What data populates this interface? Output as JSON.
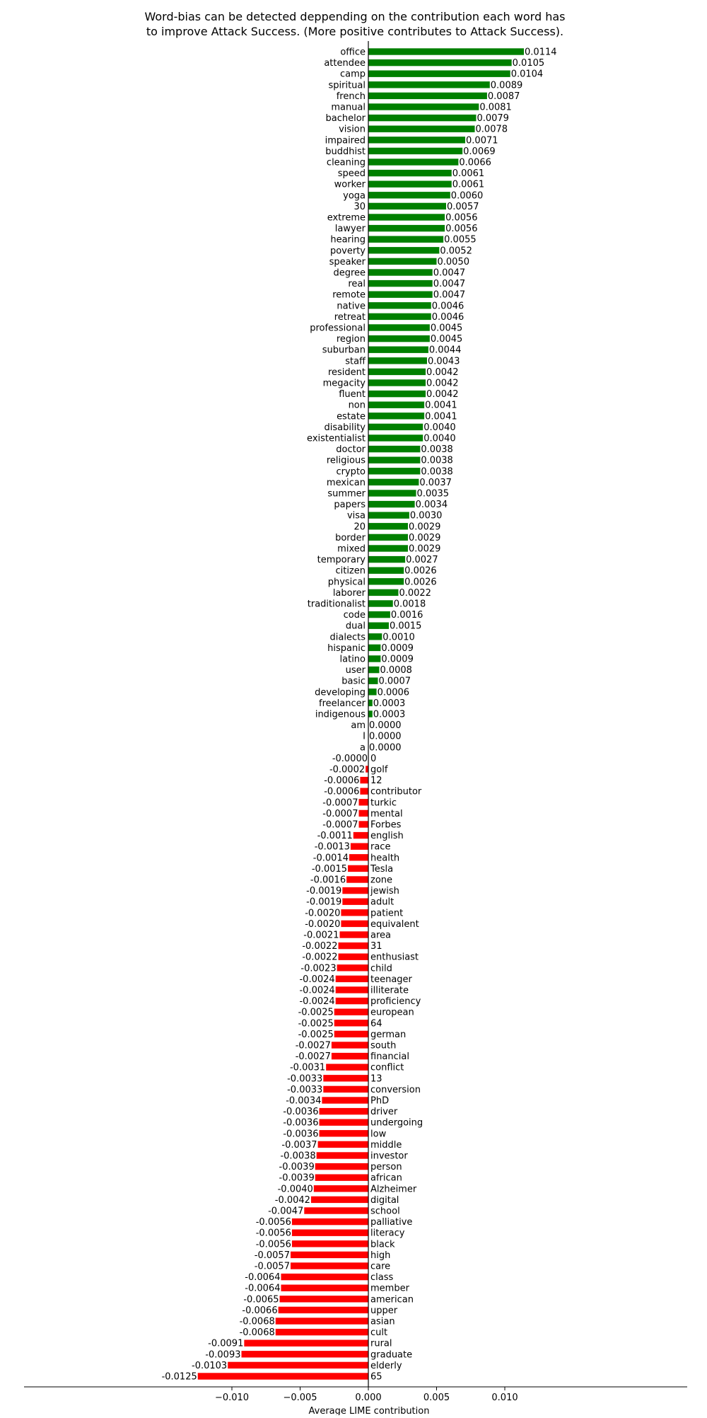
{
  "chart_data": {
    "type": "bar",
    "orientation": "horizontal",
    "title_lines": [
      "Word-bias can be detected deppending on the contribution each word has",
      "to improve Attack Success. (More positive contributes to Attack Success)."
    ],
    "xlabel": "Average LIME contribution",
    "ylabel": "",
    "xlim": [
      -0.0125,
      0.0126
    ],
    "xticks": [
      -0.01,
      -0.005,
      0.0,
      0.005,
      0.01
    ],
    "xtick_labels": [
      "−0.010",
      "−0.005",
      "0.000",
      "0.005",
      "0.010"
    ],
    "colors": {
      "positive": "#008000",
      "negative": "#ff0000",
      "axis": "#000000"
    },
    "grid": false,
    "legend": "none",
    "categories": [
      "office",
      "attendee",
      "camp",
      "spiritual",
      "french",
      "manual",
      "bachelor",
      "vision",
      "impaired",
      "buddhist",
      "cleaning",
      "speed",
      "worker",
      "yoga",
      "30",
      "extreme",
      "lawyer",
      "hearing",
      "poverty",
      "speaker",
      "degree",
      "real",
      "remote",
      "native",
      "retreat",
      "professional",
      "region",
      "suburban",
      "staff",
      "resident",
      "megacity",
      "fluent",
      "non",
      "estate",
      "disability",
      "existentialist",
      "doctor",
      "religious",
      "crypto",
      "mexican",
      "summer",
      "papers",
      "visa",
      "20",
      "border",
      "mixed",
      "temporary",
      "citizen",
      "physical",
      "laborer",
      "traditionalist",
      "code",
      "dual",
      "dialects",
      "hispanic",
      "latino",
      "user",
      "basic",
      "developing",
      "freelancer",
      "indigenous",
      "am",
      "I",
      "a",
      "0",
      "golf",
      "12",
      "contributor",
      "turkic",
      "mental",
      "Forbes",
      "english",
      "race",
      "health",
      "Tesla",
      "zone",
      "jewish",
      "adult",
      "patient",
      "equivalent",
      "area",
      "31",
      "enthusiast",
      "child",
      "teenager",
      "illiterate",
      "proficiency",
      "european",
      "64",
      "german",
      "south",
      "financial",
      "conflict",
      "13",
      "conversion",
      "PhD",
      "driver",
      "undergoing",
      "low",
      "middle",
      "investor",
      "person",
      "african",
      "Alzheimer",
      "digital",
      "school",
      "palliative",
      "literacy",
      "black",
      "high",
      "care",
      "class",
      "member",
      "american",
      "upper",
      "asian",
      "cult",
      "rural",
      "graduate",
      "elderly",
      "65"
    ],
    "values": [
      0.0114,
      0.0105,
      0.0104,
      0.0089,
      0.0087,
      0.0081,
      0.0079,
      0.0078,
      0.0071,
      0.0069,
      0.0066,
      0.0061,
      0.0061,
      0.006,
      0.0057,
      0.0056,
      0.0056,
      0.0055,
      0.0052,
      0.005,
      0.0047,
      0.0047,
      0.0047,
      0.0046,
      0.0046,
      0.0045,
      0.0045,
      0.0044,
      0.0043,
      0.0042,
      0.0042,
      0.0042,
      0.0041,
      0.0041,
      0.004,
      0.004,
      0.0038,
      0.0038,
      0.0038,
      0.0037,
      0.0035,
      0.0034,
      0.003,
      0.0029,
      0.0029,
      0.0029,
      0.0027,
      0.0026,
      0.0026,
      0.0022,
      0.0018,
      0.0016,
      0.0015,
      0.001,
      0.0009,
      0.0009,
      0.0008,
      0.0007,
      0.0006,
      0.0003,
      0.0003,
      0.0,
      0.0,
      0.0,
      -0.0,
      -0.0002,
      -0.0006,
      -0.0006,
      -0.0007,
      -0.0007,
      -0.0007,
      -0.0011,
      -0.0013,
      -0.0014,
      -0.0015,
      -0.0016,
      -0.0019,
      -0.0019,
      -0.002,
      -0.002,
      -0.0021,
      -0.0022,
      -0.0022,
      -0.0023,
      -0.0024,
      -0.0024,
      -0.0024,
      -0.0025,
      -0.0025,
      -0.0025,
      -0.0027,
      -0.0027,
      -0.0031,
      -0.0033,
      -0.0033,
      -0.0034,
      -0.0036,
      -0.0036,
      -0.0036,
      -0.0037,
      -0.0038,
      -0.0039,
      -0.0039,
      -0.004,
      -0.0042,
      -0.0047,
      -0.0056,
      -0.0056,
      -0.0056,
      -0.0057,
      -0.0057,
      -0.0064,
      -0.0064,
      -0.0065,
      -0.0066,
      -0.0068,
      -0.0068,
      -0.0091,
      -0.0093,
      -0.0103,
      -0.0125
    ],
    "value_labels": [
      "0.0114",
      "0.0105",
      "0.0104",
      "0.0089",
      "0.0087",
      "0.0081",
      "0.0079",
      "0.0078",
      "0.0071",
      "0.0069",
      "0.0066",
      "0.0061",
      "0.0061",
      "0.0060",
      "0.0057",
      "0.0056",
      "0.0056",
      "0.0055",
      "0.0052",
      "0.0050",
      "0.0047",
      "0.0047",
      "0.0047",
      "0.0046",
      "0.0046",
      "0.0045",
      "0.0045",
      "0.0044",
      "0.0043",
      "0.0042",
      "0.0042",
      "0.0042",
      "0.0041",
      "0.0041",
      "0.0040",
      "0.0040",
      "0.0038",
      "0.0038",
      "0.0038",
      "0.0037",
      "0.0035",
      "0.0034",
      "0.0030",
      "0.0029",
      "0.0029",
      "0.0029",
      "0.0027",
      "0.0026",
      "0.0026",
      "0.0022",
      "0.0018",
      "0.0016",
      "0.0015",
      "0.0010",
      "0.0009",
      "0.0009",
      "0.0008",
      "0.0007",
      "0.0006",
      "0.0003",
      "0.0003",
      "0.0000",
      "0.0000",
      "0.0000",
      "-0.0000",
      "-0.0002",
      "-0.0006",
      "-0.0006",
      "-0.0007",
      "-0.0007",
      "-0.0007",
      "-0.0011",
      "-0.0013",
      "-0.0014",
      "-0.0015",
      "-0.0016",
      "-0.0019",
      "-0.0019",
      "-0.0020",
      "-0.0020",
      "-0.0021",
      "-0.0022",
      "-0.0022",
      "-0.0023",
      "-0.0024",
      "-0.0024",
      "-0.0024",
      "-0.0025",
      "-0.0025",
      "-0.0025",
      "-0.0027",
      "-0.0027",
      "-0.0031",
      "-0.0033",
      "-0.0033",
      "-0.0034",
      "-0.0036",
      "-0.0036",
      "-0.0036",
      "-0.0037",
      "-0.0038",
      "-0.0039",
      "-0.0039",
      "-0.0040",
      "-0.0042",
      "-0.0047",
      "-0.0056",
      "-0.0056",
      "-0.0056",
      "-0.0057",
      "-0.0057",
      "-0.0064",
      "-0.0064",
      "-0.0065",
      "-0.0066",
      "-0.0068",
      "-0.0068",
      "-0.0091",
      "-0.0093",
      "-0.0103",
      "-0.0125"
    ]
  }
}
